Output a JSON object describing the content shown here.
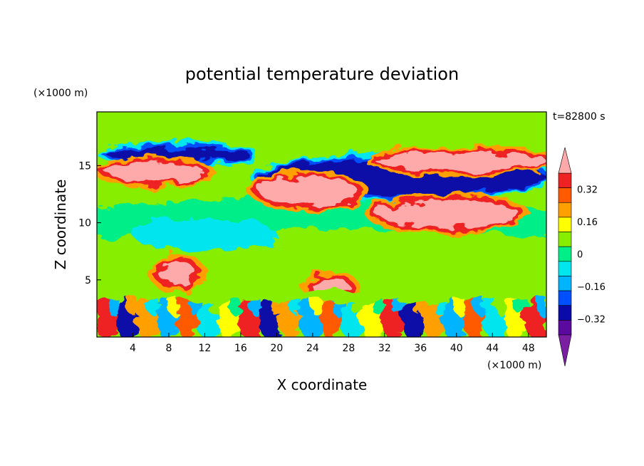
{
  "chart_data": {
    "type": "heatmap",
    "title": "potential temperature deviation",
    "xlabel": "X coordinate",
    "ylabel": "Z coordinate",
    "x_unit": "(×1000 m)",
    "y_unit": "(×1000 m)",
    "time_label": "t=82800 s",
    "xlim": [
      0,
      50
    ],
    "ylim": [
      0,
      19.7
    ],
    "x_ticks": [
      4,
      8,
      12,
      16,
      20,
      24,
      28,
      32,
      36,
      40,
      44,
      48
    ],
    "y_ticks": [
      5,
      10,
      15
    ],
    "colorbar": {
      "levels": [
        -0.4,
        -0.32,
        -0.24,
        -0.16,
        -0.08,
        0,
        0.08,
        0.16,
        0.24,
        0.32,
        0.4
      ],
      "tick_labels": [
        "0.32",
        "0.16",
        "0",
        "−0.16",
        "−0.32"
      ],
      "tick_values": [
        0.32,
        0.16,
        0,
        -0.16,
        -0.32
      ],
      "colors": [
        "#7a1fa2",
        "#5a0a9e",
        "#0a0aa8",
        "#0050ff",
        "#00b4ff",
        "#00e5ee",
        "#00ee88",
        "#88ee00",
        "#ffff00",
        "#ffa000",
        "#ff5a00",
        "#ee2222",
        "#ffaaaa"
      ]
    },
    "regions": [
      {
        "name": "upper-cool-band-left",
        "value": -0.36,
        "x": [
          1,
          17
        ],
        "z": [
          15.4,
          16.6
        ]
      },
      {
        "name": "upper-cool-band-right",
        "value": -0.36,
        "x": [
          18,
          50
        ],
        "z": [
          12.4,
          15.6
        ]
      },
      {
        "name": "warm-lens-left",
        "value": 0.45,
        "x": [
          1,
          12
        ],
        "z": [
          13.6,
          15.2
        ]
      },
      {
        "name": "warm-lens-center",
        "value": 0.45,
        "x": [
          18,
          29
        ],
        "z": [
          11.6,
          14.0
        ]
      },
      {
        "name": "warm-lens-right",
        "value": 0.45,
        "x": [
          31,
          50
        ],
        "z": [
          14.6,
          16.2
        ]
      },
      {
        "name": "warm-tongue-rising",
        "value": 0.45,
        "x": [
          31,
          47
        ],
        "z": [
          9.6,
          12.0
        ]
      },
      {
        "name": "warm-cell-low-left",
        "value": 0.45,
        "x": [
          7,
          11
        ],
        "z": [
          4.5,
          6.6
        ]
      },
      {
        "name": "warm-cell-low-center",
        "value": 0.45,
        "x": [
          24,
          28
        ],
        "z": [
          3.6,
          5.2
        ]
      },
      {
        "name": "boundary-layer-turbulence",
        "value": 0.3,
        "x": [
          0,
          50
        ],
        "z": [
          0,
          3.5
        ]
      }
    ]
  }
}
